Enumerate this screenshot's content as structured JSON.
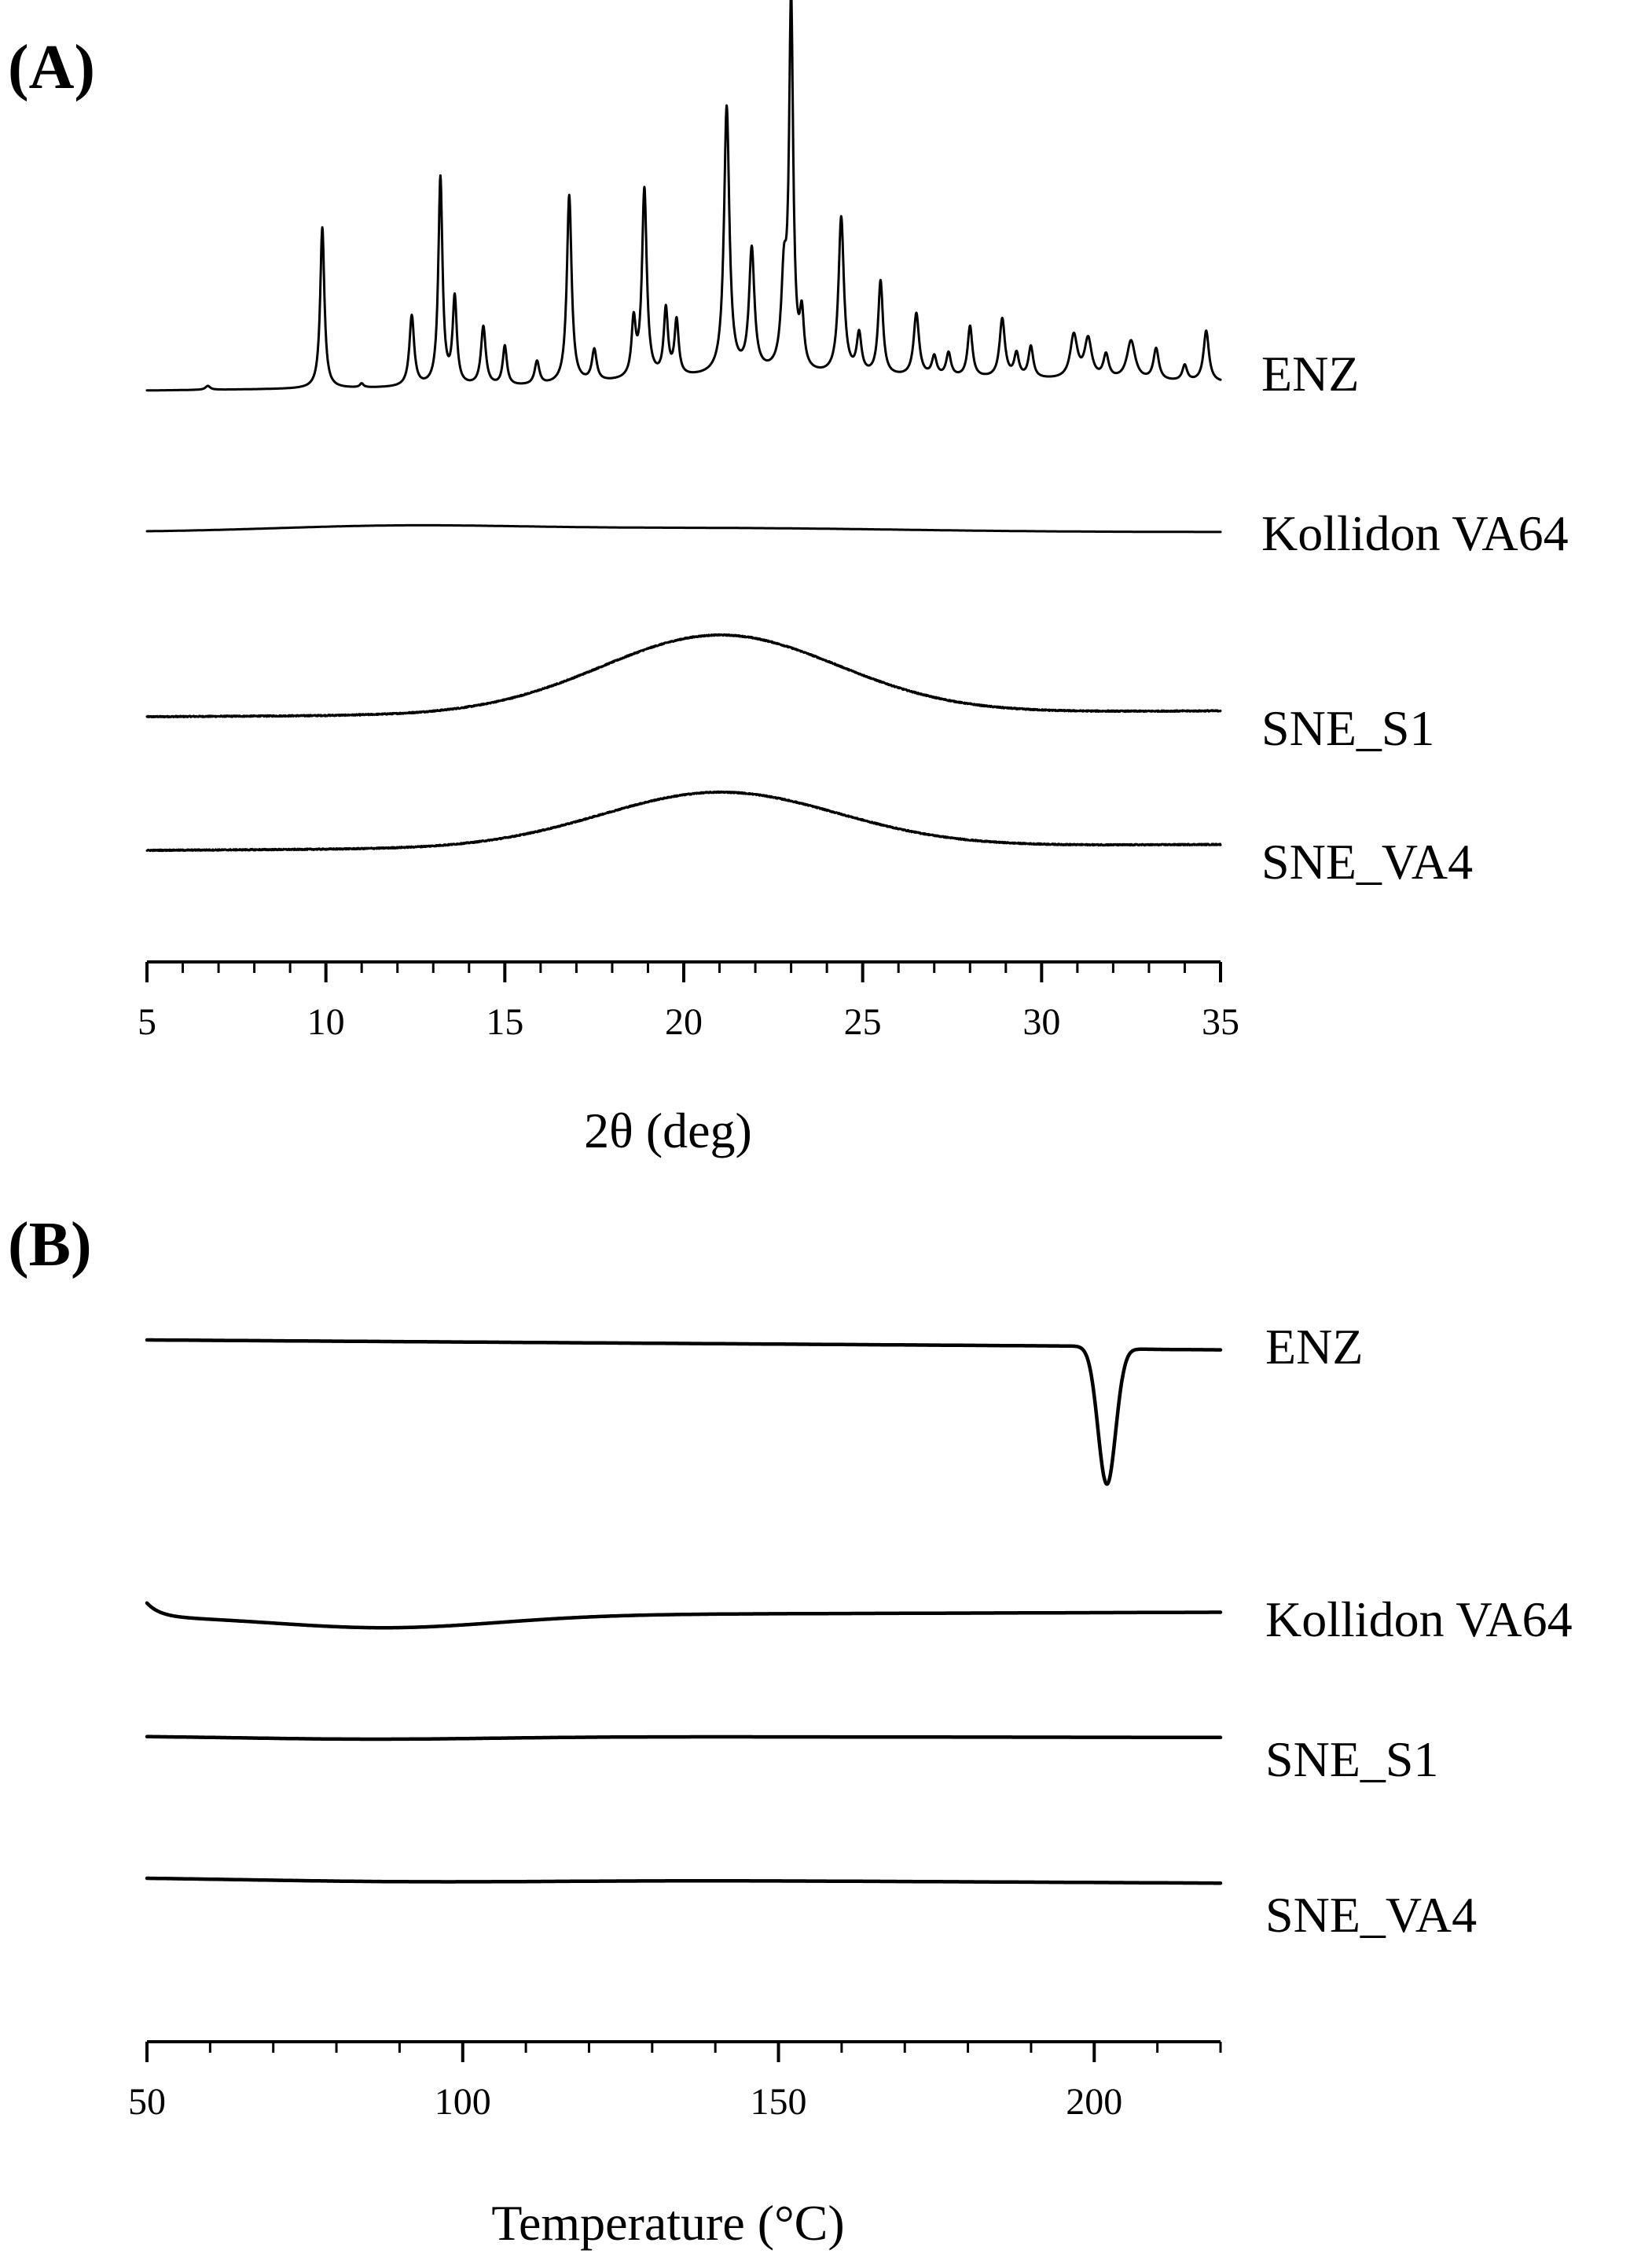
{
  "chart_data": [
    {
      "panel_label": "(A)",
      "type": "line",
      "xlabel": "2θ (deg)",
      "ylabel": "",
      "xlim": [
        5,
        35
      ],
      "x_ticks": [
        5,
        10,
        15,
        20,
        25,
        30,
        35
      ],
      "x_minor_step": 1,
      "y_axis_visible": false,
      "grid": false,
      "series": [
        {
          "name": "ENZ",
          "baseline": 0.0,
          "background": [
            [
              5,
              0
            ],
            [
              16,
              0.01
            ],
            [
              20,
              0.03
            ],
            [
              22,
              0.04
            ],
            [
              24,
              0.035
            ],
            [
              28,
              0.03
            ],
            [
              35,
              0.02
            ]
          ],
          "peaks": [
            [
              6.7,
              0.01,
              0.08
            ],
            [
              9.9,
              0.41,
              0.07
            ],
            [
              11.0,
              0.01,
              0.06
            ],
            [
              12.4,
              0.18,
              0.08
            ],
            [
              13.2,
              0.53,
              0.07
            ],
            [
              13.6,
              0.22,
              0.07
            ],
            [
              14.4,
              0.15,
              0.08
            ],
            [
              15.0,
              0.1,
              0.07
            ],
            [
              15.9,
              0.06,
              0.08
            ],
            [
              16.8,
              0.48,
              0.08
            ],
            [
              17.5,
              0.08,
              0.08
            ],
            [
              18.6,
              0.14,
              0.07
            ],
            [
              18.9,
              0.48,
              0.08
            ],
            [
              19.5,
              0.17,
              0.07
            ],
            [
              19.8,
              0.14,
              0.07
            ],
            [
              21.2,
              0.68,
              0.09
            ],
            [
              21.9,
              0.31,
              0.09
            ],
            [
              22.8,
              0.22,
              0.09
            ],
            [
              23.0,
              0.93,
              0.07
            ],
            [
              23.3,
              0.13,
              0.07
            ],
            [
              24.4,
              0.4,
              0.09
            ],
            [
              24.9,
              0.1,
              0.08
            ],
            [
              25.5,
              0.24,
              0.08
            ],
            [
              26.5,
              0.16,
              0.09
            ],
            [
              27.0,
              0.05,
              0.08
            ],
            [
              27.4,
              0.06,
              0.08
            ],
            [
              28.0,
              0.13,
              0.08
            ],
            [
              28.9,
              0.15,
              0.09
            ],
            [
              29.3,
              0.06,
              0.08
            ],
            [
              29.7,
              0.08,
              0.08
            ],
            [
              30.9,
              0.11,
              0.12
            ],
            [
              31.3,
              0.1,
              0.12
            ],
            [
              31.8,
              0.06,
              0.09
            ],
            [
              32.5,
              0.1,
              0.14
            ],
            [
              33.2,
              0.08,
              0.09
            ],
            [
              34.0,
              0.04,
              0.08
            ],
            [
              34.6,
              0.13,
              0.09
            ]
          ]
        },
        {
          "name": "Kollidon VA64",
          "baseline": -0.36,
          "humps": [
            [
              12,
              0.015,
              3.5
            ],
            [
              21,
              0.01,
              5
            ]
          ]
        },
        {
          "name": "SNE_S1",
          "baseline": -0.83,
          "humps": [
            [
              21,
              0.2,
              3.3
            ]
          ],
          "slope": 0.015,
          "noise": 0.003
        },
        {
          "name": "SNE_VA4",
          "baseline": -1.17,
          "humps": [
            [
              21,
              0.14,
              3.3
            ]
          ],
          "slope": 0.015,
          "noise": 0.003
        }
      ]
    },
    {
      "panel_label": "(B)",
      "type": "line",
      "xlabel": "Temperature (°C)",
      "ylabel": "",
      "xlim": [
        50,
        220
      ],
      "x_ticks": [
        50,
        100,
        150,
        200
      ],
      "x_minor_step": 10,
      "y_axis_visible": false,
      "grid": false,
      "series": [
        {
          "name": "ENZ",
          "baseline": 0.0,
          "drift": -0.01,
          "dips": [
            [
              202,
              0.195,
              1.4
            ]
          ],
          "step_after_dip": -0.004
        },
        {
          "name": "Kollidon VA64",
          "baseline": -0.39,
          "start_spike": 0.02,
          "humps": [
            [
              88,
              -0.018,
              18
            ]
          ],
          "drift": 0.005
        },
        {
          "name": "SNE_S1",
          "baseline": -0.56,
          "humps": [
            [
              85,
              -0.004,
              20
            ]
          ],
          "drift": -0.002
        },
        {
          "name": "SNE_VA4",
          "baseline": -0.76,
          "humps": [
            [
              90,
              -0.004,
              25
            ]
          ],
          "drift": -0.008
        }
      ]
    }
  ]
}
